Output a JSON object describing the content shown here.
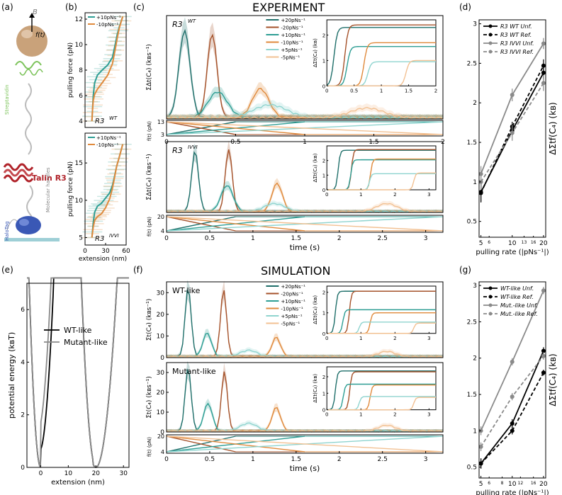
{
  "figure": {
    "panel_labels": [
      "(a)",
      "(b)",
      "(c)",
      "(d)",
      "(e)",
      "(f)",
      "(g)"
    ],
    "experiment_title": "EXPERIMENT",
    "simulation_title": "SIMULATION"
  },
  "panel_a": {
    "force_label": "f(t)",
    "field_label": "B",
    "streptavidin": "Streptavidin",
    "talin": "Talin R3",
    "handles": "Molecular handles",
    "halotag": "HaloTag",
    "colors": {
      "bead": "#c9a27a",
      "streptavidin": "#7cc35a",
      "talin": "#b0232a",
      "halotag": "#3a58b5",
      "surface": "#9ecfd6"
    }
  },
  "colors": {
    "p20": "#1f6f6a",
    "m20": "#a5522a",
    "p10": "#2e9e94",
    "m10": "#e08a3c",
    "p5": "#8fd4cf",
    "m5": "#f2c193",
    "black": "#000000",
    "gray": "#8a8a8a"
  },
  "chart_data": [
    {
      "id": "b_top",
      "type": "line",
      "inset_label": "R3",
      "inset_sup": "WT",
      "ylabel": "pulling force (pN)",
      "xlim": [
        0,
        60
      ],
      "ylim": [
        3.5,
        12.5
      ],
      "yticks": [
        4,
        6,
        8,
        10,
        12
      ],
      "legend": [
        "+10pNs⁻¹",
        "-10pNs⁻¹"
      ],
      "series": [
        {
          "name": "+10pNs⁻¹",
          "x": [
            10,
            11,
            12,
            14,
            18,
            25,
            33,
            40,
            44,
            47,
            50,
            55
          ],
          "y": [
            4,
            5,
            6,
            7,
            7.6,
            8,
            8.4,
            9,
            10,
            10.8,
            11.4,
            12.2
          ]
        },
        {
          "name": "-10pNs⁻¹",
          "x": [
            10,
            11,
            12,
            14,
            18,
            25,
            33,
            40,
            44,
            47,
            50,
            55
          ],
          "y": [
            4,
            4.9,
            5.6,
            6.1,
            6.5,
            7,
            7.6,
            8.5,
            9.6,
            10.5,
            11.3,
            12.2
          ]
        }
      ]
    },
    {
      "id": "b_bottom",
      "type": "line",
      "inset_label": "R3",
      "inset_sup": "IVVI",
      "ylabel": "pulling force (pN)",
      "xlabel": "extension (nm)",
      "xlim": [
        0,
        60
      ],
      "ylim": [
        4,
        19
      ],
      "yticks": [
        5,
        10,
        15
      ],
      "xticks": [
        0,
        30,
        60
      ],
      "legend": [
        "+10pNs⁻¹",
        "-10pNs⁻¹"
      ],
      "series": [
        {
          "name": "+10pNs⁻¹",
          "x": [
            10,
            12,
            14,
            18,
            24,
            30,
            36,
            40,
            43,
            46,
            50,
            55
          ],
          "y": [
            5,
            7,
            8.4,
            9.2,
            9.6,
            10.3,
            11,
            12,
            13.2,
            14.5,
            15.8,
            17.5
          ]
        },
        {
          "name": "-10pNs⁻¹",
          "x": [
            10,
            12,
            14,
            18,
            24,
            30,
            36,
            40,
            43,
            46,
            50,
            55
          ],
          "y": [
            5,
            6.4,
            7.3,
            7.8,
            8.2,
            9,
            10.2,
            11.6,
            13,
            14.5,
            15.8,
            17.5
          ]
        }
      ]
    },
    {
      "id": "c_top",
      "type": "line",
      "inset_label": "R3",
      "inset_sup": "WT",
      "ylabel": "Σ̇Δt(C₄) (kʙs⁻¹)",
      "xlim": [
        0,
        2
      ],
      "ylim": [
        0,
        32
      ],
      "legend": [
        "+20pNs⁻¹",
        "-20pNs⁻¹",
        "+10pNs⁻¹",
        "-10pNs⁻¹",
        "+5pNs⁻¹",
        "-5pNs⁻¹"
      ],
      "series": [
        {
          "name": "+20pNs⁻¹",
          "peak_x": 0.13,
          "peak_y": 27,
          "width": 0.04
        },
        {
          "name": "-20pNs⁻¹",
          "peak_x": 0.33,
          "peak_y": 26,
          "width": 0.035
        },
        {
          "name": "+10pNs⁻¹",
          "peak_x": 0.37,
          "peak_y": 8,
          "width": 0.07
        },
        {
          "name": "-10pNs⁻¹",
          "peak_x": 0.68,
          "peak_y": 9,
          "width": 0.06
        },
        {
          "name": "+5pNs⁻¹",
          "peak_x": 0.75,
          "peak_y": 4,
          "width": 0.12
        },
        {
          "name": "-5pNs⁻¹",
          "peak_x": 1.45,
          "peak_y": 3,
          "width": 0.12
        }
      ],
      "inset": {
        "ylabel": "ΔΣt(C₄) (kʙ)",
        "xlim": [
          0,
          2
        ],
        "ylim": [
          0,
          2.6
        ],
        "xticks": [
          0,
          0.5,
          1,
          1.5,
          2
        ],
        "yticks": [
          0,
          1,
          2
        ],
        "series": [
          {
            "name": "+20pNs⁻¹",
            "step_x": 0.13,
            "level": 2.3
          },
          {
            "name": "-20pNs⁻¹",
            "step_x": 0.33,
            "level": 2.4
          },
          {
            "name": "+10pNs⁻¹",
            "step_x": 0.37,
            "level": 1.55
          },
          {
            "name": "-10pNs⁻¹",
            "step_x": 0.68,
            "level": 1.7
          },
          {
            "name": "+5pNs⁻¹",
            "step_x": 0.75,
            "level": 0.95
          },
          {
            "name": "-5pNs⁻¹",
            "step_x": 1.45,
            "level": 1.0
          }
        ]
      },
      "force_strip": {
        "ylabel": "f(t) (pN)",
        "yticks": [
          3,
          13
        ],
        "xticks": [
          0,
          0.5,
          1.0,
          1.5,
          2.0
        ],
        "xlim": [
          0,
          2
        ],
        "range": [
          3,
          13
        ],
        "periods": [
          0.5,
          1.0,
          2.0
        ]
      }
    },
    {
      "id": "c_bottom",
      "type": "line",
      "inset_label": "R3",
      "inset_sup": "IVVI",
      "ylabel": "Σ̇Δt(C₄) (kʙs⁻¹)",
      "xlim": [
        0,
        3.2
      ],
      "ylim": [
        0,
        35
      ],
      "xlabel": "time (s)",
      "series": [
        {
          "name": "+20pNs⁻¹",
          "peak_x": 0.33,
          "peak_y": 30,
          "width": 0.04
        },
        {
          "name": "-20pNs⁻¹",
          "peak_x": 0.72,
          "peak_y": 31,
          "width": 0.04
        },
        {
          "name": "+10pNs⁻¹",
          "peak_x": 0.7,
          "peak_y": 13,
          "width": 0.07
        },
        {
          "name": "-10pNs⁻¹",
          "peak_x": 1.28,
          "peak_y": 14,
          "width": 0.06
        },
        {
          "name": "+5pNs⁻¹",
          "peak_x": 1.25,
          "peak_y": 4,
          "width": 0.12
        },
        {
          "name": "-5pNs⁻¹",
          "peak_x": 2.55,
          "peak_y": 4,
          "width": 0.12
        }
      ],
      "inset": {
        "ylabel": "ΔΣt(C₄) (kʙ)",
        "xlim": [
          0,
          3.2
        ],
        "ylim": [
          0,
          3
        ],
        "xticks": [
          0,
          1,
          2,
          3
        ],
        "yticks": [
          0,
          1,
          2
        ],
        "series": [
          {
            "name": "+20pNs⁻¹",
            "step_x": 0.33,
            "level": 2.7
          },
          {
            "name": "-20pNs⁻¹",
            "step_x": 0.72,
            "level": 2.75
          },
          {
            "name": "+10pNs⁻¹",
            "step_x": 0.7,
            "level": 2.05
          },
          {
            "name": "-10pNs⁻¹",
            "step_x": 1.28,
            "level": 2.1
          },
          {
            "name": "+5pNs⁻¹",
            "step_x": 1.25,
            "level": 1.1
          },
          {
            "name": "-5pNs⁻¹",
            "step_x": 2.55,
            "level": 1.15
          }
        ]
      },
      "force_strip": {
        "ylabel": "f(t) (pN)",
        "yticks": [
          4,
          20
        ],
        "xticks": [
          0.0,
          0.5,
          1.0,
          1.5,
          2.0,
          2.5,
          3.0
        ],
        "xlim": [
          0,
          3.2
        ],
        "range": [
          4,
          20
        ],
        "periods": [
          0.8,
          1.6,
          3.2
        ]
      }
    },
    {
      "id": "d",
      "type": "line",
      "ylabel": "ΔΣtf(C₄) (kʙ)",
      "xlabel": "pulling rate (|pNs⁻¹|)",
      "xscale": "log",
      "xlim": [
        4.8,
        21
      ],
      "ylim": [
        0.3,
        3.05
      ],
      "yticks": [
        0.5,
        1.0,
        1.5,
        2.0,
        2.5,
        3.0
      ],
      "xticks_major": [
        5,
        10,
        20
      ],
      "xticks_minor": [
        6,
        13,
        16
      ],
      "legend_position": "top-left",
      "series": [
        {
          "name": "R3 WT Unf.",
          "style": "solid",
          "color": "black",
          "x": [
            5,
            10,
            20
          ],
          "y": [
            0.87,
            1.65,
            2.38
          ],
          "err": [
            0.12,
            0.06,
            0.08
          ]
        },
        {
          "name": "R3 WT Ref.",
          "style": "dashed",
          "color": "black",
          "x": [
            5,
            10,
            20
          ],
          "y": [
            0.86,
            1.7,
            2.47
          ],
          "err": [
            0.12,
            0.06,
            0.08
          ]
        },
        {
          "name": "R3 IVVI Unf.",
          "style": "solid",
          "color": "gray",
          "x": [
            5,
            10,
            20
          ],
          "y": [
            1.1,
            2.1,
            2.75
          ],
          "err": [
            0.1,
            0.08,
            0.07
          ]
        },
        {
          "name": "R3 IVVI Ref.",
          "style": "dashed",
          "color": "gray",
          "x": [
            5,
            10,
            20
          ],
          "y": [
            1.0,
            1.62,
            2.25
          ],
          "err": [
            0.1,
            0.1,
            0.1
          ]
        }
      ]
    },
    {
      "id": "e",
      "type": "line",
      "ylabel": "potential energy (kʙT)",
      "xlabel": "extension (nm)",
      "xlim": [
        -5,
        32
      ],
      "ylim": [
        0,
        7
      ],
      "xticks": [
        0,
        10,
        20,
        30
      ],
      "yticks": [
        0,
        2,
        4,
        6
      ],
      "legend_position": "top-center",
      "series": [
        {
          "name": "WT-like",
          "color": "black",
          "barrier": 1.5,
          "barrier_x": 5
        },
        {
          "name": "Mutant-like",
          "color": "gray",
          "barrier": 3.7,
          "barrier_x": 5
        }
      ]
    },
    {
      "id": "f_top",
      "type": "line",
      "inset_label": "WT-like",
      "ylabel": "Σ̇t(C₄) (kʙs⁻¹)",
      "xlim": [
        0,
        3.2
      ],
      "ylim": [
        0,
        35
      ],
      "yticks": [
        0,
        10,
        20,
        30
      ],
      "legend": [
        "+20pNs⁻¹",
        "-20pNs⁻¹",
        "+10pNs⁻¹",
        "-10pNs⁻¹",
        "+5pNs⁻¹",
        "-5pNs⁻¹"
      ],
      "series": [
        {
          "name": "+20pNs⁻¹",
          "peak_x": 0.25,
          "peak_y": 32,
          "width": 0.035
        },
        {
          "name": "-20pNs⁻¹",
          "peak_x": 0.66,
          "peak_y": 31,
          "width": 0.035
        },
        {
          "name": "+10pNs⁻¹",
          "peak_x": 0.47,
          "peak_y": 11,
          "width": 0.05
        },
        {
          "name": "-10pNs⁻¹",
          "peak_x": 1.27,
          "peak_y": 9,
          "width": 0.05
        },
        {
          "name": "+5pNs⁻¹",
          "peak_x": 0.95,
          "peak_y": 3,
          "width": 0.1
        },
        {
          "name": "-5pNs⁻¹",
          "peak_x": 2.55,
          "peak_y": 2.5,
          "width": 0.1
        }
      ],
      "inset": {
        "ylabel": "ΔΣt(C₄) (kʙ)",
        "xlim": [
          0,
          3.2
        ],
        "ylim": [
          0,
          2.3
        ],
        "xticks": [
          0,
          1,
          2,
          3
        ],
        "yticks": [
          0,
          1,
          2
        ],
        "series": [
          {
            "name": "+20pNs⁻¹",
            "step_x": 0.25,
            "level": 2.05
          },
          {
            "name": "-20pNs⁻¹",
            "step_x": 0.66,
            "level": 2.05
          },
          {
            "name": "+10pNs⁻¹",
            "step_x": 0.47,
            "level": 1.15
          },
          {
            "name": "-10pNs⁻¹",
            "step_x": 1.27,
            "level": 1.0
          },
          {
            "name": "+5pNs⁻¹",
            "step_x": 0.95,
            "level": 0.55
          },
          {
            "name": "-5pNs⁻¹",
            "step_x": 2.55,
            "level": 0.5
          }
        ]
      }
    },
    {
      "id": "f_bottom",
      "type": "line",
      "inset_label": "Mutant-like",
      "ylabel": "Σ̇t(C₄) (kʙs⁻¹)",
      "xlabel": "time (s)",
      "xlim": [
        0,
        3.2
      ],
      "ylim": [
        0,
        35
      ],
      "yticks": [
        0,
        10,
        20,
        30
      ],
      "series": [
        {
          "name": "+20pNs⁻¹",
          "peak_x": 0.25,
          "peak_y": 32,
          "width": 0.035
        },
        {
          "name": "-20pNs⁻¹",
          "peak_x": 0.67,
          "peak_y": 30,
          "width": 0.035
        },
        {
          "name": "+10pNs⁻¹",
          "peak_x": 0.48,
          "peak_y": 14,
          "width": 0.05
        },
        {
          "name": "-10pNs⁻¹",
          "peak_x": 1.27,
          "peak_y": 12,
          "width": 0.05
        },
        {
          "name": "+5pNs⁻¹",
          "peak_x": 0.95,
          "peak_y": 4,
          "width": 0.1
        },
        {
          "name": "-5pNs⁻¹",
          "peak_x": 2.55,
          "peak_y": 3,
          "width": 0.1
        }
      ],
      "inset": {
        "ylabel": "ΔΣt(C₄) (kʙ)",
        "xlim": [
          0,
          3.2
        ],
        "ylim": [
          0,
          2.6
        ],
        "xticks": [
          0,
          1,
          2,
          3
        ],
        "yticks": [
          0,
          1,
          2
        ],
        "series": [
          {
            "name": "+20pNs⁻¹",
            "step_x": 0.25,
            "level": 2.35
          },
          {
            "name": "-20pNs⁻¹",
            "step_x": 0.67,
            "level": 2.3
          },
          {
            "name": "+10pNs⁻¹",
            "step_x": 0.48,
            "level": 1.55
          },
          {
            "name": "-10pNs⁻¹",
            "step_x": 1.27,
            "level": 1.5
          },
          {
            "name": "+5pNs⁻¹",
            "step_x": 0.95,
            "level": 0.8
          },
          {
            "name": "-5pNs⁻¹",
            "step_x": 2.55,
            "level": 0.75
          }
        ]
      },
      "force_strip": {
        "ylabel": "f(t) (pN)",
        "yticks": [
          4,
          20
        ],
        "xticks": [
          0.0,
          0.5,
          1.0,
          1.5,
          2.0,
          2.5,
          3.0
        ],
        "xlim": [
          0,
          3.2
        ],
        "range": [
          4,
          20
        ],
        "periods": [
          0.8,
          1.6,
          3.2
        ]
      }
    },
    {
      "id": "g",
      "type": "line",
      "ylabel": "ΔΣtf(C₄) (kʙ)",
      "xlabel": "pulling rate (|pNs⁻¹|)",
      "xscale": "log",
      "xlim": [
        4.8,
        21
      ],
      "ylim": [
        0.35,
        3.05
      ],
      "yticks": [
        0.5,
        1.0,
        1.5,
        2.0,
        2.5,
        3.0
      ],
      "xticks_major": [
        5,
        10,
        20
      ],
      "xticks_minor": [
        6,
        8,
        12,
        16
      ],
      "legend_position": "top-left",
      "series": [
        {
          "name": "WT-like Unf.",
          "style": "solid",
          "color": "black",
          "x": [
            5,
            10,
            20
          ],
          "y": [
            0.55,
            1.1,
            2.1
          ],
          "err": [
            0.07,
            0.06,
            0.05
          ]
        },
        {
          "name": "WT-like Ref.",
          "style": "dashed",
          "color": "black",
          "x": [
            5,
            10,
            20
          ],
          "y": [
            0.55,
            1.0,
            1.8
          ],
          "err": [
            0.07,
            0.05,
            0.04
          ]
        },
        {
          "name": "Mut.-like Unf.",
          "style": "solid",
          "color": "gray",
          "x": [
            5,
            10,
            20
          ],
          "y": [
            1.0,
            1.95,
            2.93
          ],
          "err": [
            0.06,
            0.05,
            0.05
          ]
        },
        {
          "name": "Mut.-like Ref.",
          "style": "dashed",
          "color": "gray",
          "x": [
            5,
            10,
            20
          ],
          "y": [
            0.78,
            1.47,
            2.03
          ],
          "err": [
            0.06,
            0.05,
            0.05
          ]
        }
      ]
    }
  ]
}
